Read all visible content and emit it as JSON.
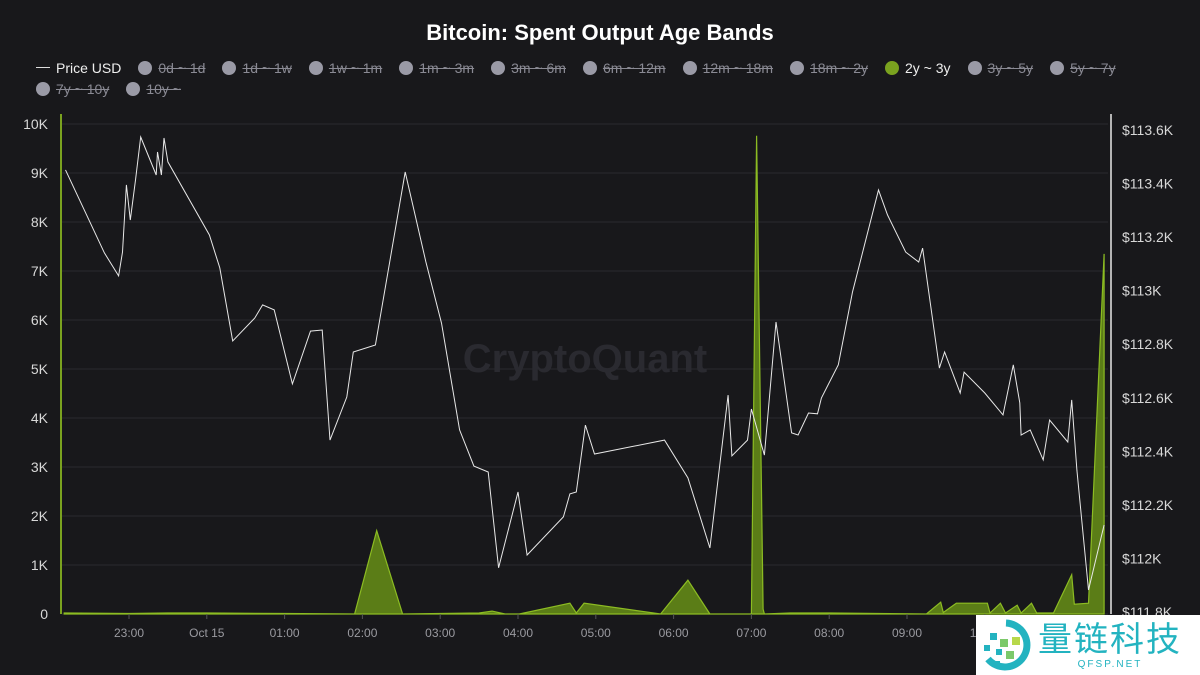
{
  "chart_data": {
    "type": "area+line",
    "title": "Bitcoin: Spent Output Age Bands",
    "legend": [
      {
        "name": "Price USD",
        "active": true,
        "kind": "line"
      },
      {
        "name": "0d ~ 1d",
        "active": false
      },
      {
        "name": "1d ~ 1w",
        "active": false
      },
      {
        "name": "1w ~ 1m",
        "active": false
      },
      {
        "name": "1m ~ 3m",
        "active": false
      },
      {
        "name": "3m ~ 6m",
        "active": false
      },
      {
        "name": "6m ~ 12m",
        "active": false
      },
      {
        "name": "12m ~ 18m",
        "active": false
      },
      {
        "name": "18m ~ 2y",
        "active": false
      },
      {
        "name": "2y ~ 3y",
        "active": true,
        "color": "#7aa21f"
      },
      {
        "name": "3y ~ 5y",
        "active": false
      },
      {
        "name": "5y ~ 7y",
        "active": false
      },
      {
        "name": "7y ~ 10y",
        "active": false
      },
      {
        "name": "10y ~",
        "active": false
      }
    ],
    "legend_placement": "top",
    "x_ticks": [
      "23:00",
      "Oct 15",
      "01:00",
      "02:00",
      "03:00",
      "04:00",
      "05:00",
      "06:00",
      "07:00",
      "08:00",
      "09:00",
      "10:00"
    ],
    "y_left_ticks": [
      "0",
      "1K",
      "2K",
      "3K",
      "4K",
      "5K",
      "6K",
      "7K",
      "8K",
      "9K",
      "10K"
    ],
    "y_left_range": [
      0,
      10000
    ],
    "y_right_ticks": [
      "$111.8K",
      "$112K",
      "$112.2K",
      "$112.4K",
      "$112.6K",
      "$112.8K",
      "$113K",
      "$113.2K",
      "$113.4K",
      "$113.6K"
    ],
    "y_right_range": [
      111800,
      113600
    ],
    "grid": true,
    "colors": {
      "background": "#18181b",
      "area_fill": "#5b7d17",
      "area_stroke": "#8cbc22",
      "price_line": "#e8e8e8"
    },
    "series": [
      {
        "name": "2y ~ 3y",
        "axis": "left",
        "points": [
          [
            "22:10",
            20
          ],
          [
            "23:00",
            10
          ],
          [
            "23:30",
            20
          ],
          [
            "00:00",
            20
          ],
          [
            "01:00",
            10
          ],
          [
            "01:54",
            0
          ],
          [
            "02:11",
            1700
          ],
          [
            "02:31",
            0
          ],
          [
            "03:30",
            20
          ],
          [
            "03:40",
            60
          ],
          [
            "03:50",
            0
          ],
          [
            "04:01",
            0
          ],
          [
            "04:40",
            220
          ],
          [
            "04:45",
            20
          ],
          [
            "04:51",
            220
          ],
          [
            "05:50",
            0
          ],
          [
            "06:11",
            690
          ],
          [
            "06:28",
            0
          ],
          [
            "07:00",
            0
          ],
          [
            "07:04",
            9760
          ],
          [
            "07:09",
            100
          ],
          [
            "07:10",
            0
          ],
          [
            "07:30",
            20
          ],
          [
            "08:00",
            20
          ],
          [
            "09:15",
            0
          ],
          [
            "09:26",
            240
          ],
          [
            "09:28",
            30
          ],
          [
            "09:38",
            220
          ],
          [
            "10:02",
            220
          ],
          [
            "10:04",
            20
          ],
          [
            "10:12",
            220
          ],
          [
            "10:16",
            20
          ],
          [
            "10:25",
            180
          ],
          [
            "10:28",
            20
          ],
          [
            "10:36",
            220
          ],
          [
            "10:40",
            20
          ],
          [
            "10:53",
            20
          ],
          [
            "11:07",
            800
          ],
          [
            "11:09",
            200
          ],
          [
            "11:20",
            220
          ],
          [
            "11:32",
            7350
          ]
        ]
      },
      {
        "name": "Price USD",
        "axis": "right",
        "points": [
          [
            "22:11",
            113451
          ],
          [
            "22:41",
            113141
          ],
          [
            "22:52",
            113055
          ],
          [
            "22:55",
            113144
          ],
          [
            "22:58",
            113395
          ],
          [
            "23:01",
            113264
          ],
          [
            "23:05",
            113413
          ],
          [
            "23:09",
            113574
          ],
          [
            "23:21",
            113432
          ],
          [
            "23:22",
            113518
          ],
          [
            "23:25",
            113432
          ],
          [
            "23:27",
            113570
          ],
          [
            "23:30",
            113481
          ],
          [
            "00:02",
            113208
          ],
          [
            "00:10",
            113085
          ],
          [
            "00:20",
            112812
          ],
          [
            "00:37",
            112898
          ],
          [
            "00:43",
            112947
          ],
          [
            "00:52",
            112928
          ],
          [
            "01:06",
            112652
          ],
          [
            "01:20",
            112849
          ],
          [
            "01:29",
            112853
          ],
          [
            "01:35",
            112442
          ],
          [
            "01:48",
            112603
          ],
          [
            "01:53",
            112771
          ],
          [
            "02:10",
            112797
          ],
          [
            "02:33",
            113443
          ],
          [
            "02:49",
            113107
          ],
          [
            "03:01",
            112879
          ],
          [
            "03:15",
            112480
          ],
          [
            "03:26",
            112345
          ],
          [
            "03:37",
            112323
          ],
          [
            "03:45",
            111965
          ],
          [
            "04:00",
            112248
          ],
          [
            "04:07",
            112013
          ],
          [
            "04:35",
            112155
          ],
          [
            "04:40",
            112241
          ],
          [
            "04:45",
            112248
          ],
          [
            "04:52",
            112498
          ],
          [
            "04:59",
            112390
          ],
          [
            "05:53",
            112442
          ],
          [
            "06:11",
            112301
          ],
          [
            "06:28",
            112039
          ],
          [
            "06:42",
            112610
          ],
          [
            "06:45",
            112383
          ],
          [
            "06:57",
            112442
          ],
          [
            "07:00",
            112558
          ],
          [
            "07:10",
            112386
          ],
          [
            "07:19",
            112883
          ],
          [
            "07:31",
            112469
          ],
          [
            "07:36",
            112461
          ],
          [
            "07:44",
            112543
          ],
          [
            "07:51",
            112540
          ],
          [
            "07:54",
            112599
          ],
          [
            "08:07",
            112723
          ],
          [
            "08:18",
            112995
          ],
          [
            "08:38",
            113376
          ],
          [
            "08:45",
            113283
          ],
          [
            "08:59",
            113144
          ],
          [
            "09:09",
            113107
          ],
          [
            "09:12",
            113159
          ],
          [
            "09:25",
            112711
          ],
          [
            "09:29",
            112771
          ],
          [
            "09:41",
            112618
          ],
          [
            "09:44",
            112696
          ],
          [
            "10:00",
            112618
          ],
          [
            "10:14",
            112536
          ],
          [
            "10:22",
            112723
          ],
          [
            "10:27",
            112581
          ],
          [
            "10:28",
            112461
          ],
          [
            "10:35",
            112480
          ],
          [
            "10:45",
            112368
          ],
          [
            "10:50",
            112517
          ],
          [
            "11:04",
            112435
          ],
          [
            "11:07",
            112592
          ],
          [
            "11:11",
            112330
          ],
          [
            "11:20",
            111882
          ],
          [
            "11:32",
            112125
          ]
        ]
      }
    ]
  },
  "watermark": "CryptoQuant",
  "logo": {
    "cn": "量链科技",
    "site": "QFSP.NET"
  }
}
